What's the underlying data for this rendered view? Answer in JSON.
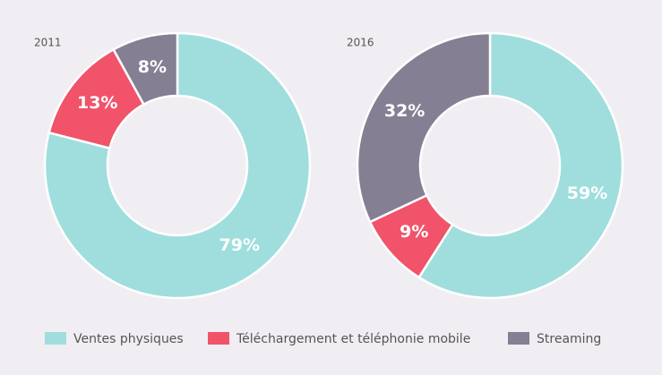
{
  "chart_data": [
    {
      "type": "pie",
      "title": "2011",
      "categories": [
        "Ventes physiques",
        "Téléchargement et téléphonie mobile",
        "Streaming"
      ],
      "values": [
        79,
        13,
        8
      ],
      "value_labels": [
        "79%",
        "13%",
        "8%"
      ],
      "colors": [
        "#9fdedd",
        "#f0536a",
        "#857f93"
      ]
    },
    {
      "type": "pie",
      "title": "2016",
      "categories": [
        "Ventes physiques",
        "Téléchargement et téléphonie mobile",
        "Streaming"
      ],
      "values": [
        59,
        9,
        32
      ],
      "value_labels": [
        "59%",
        "9%",
        "32%"
      ],
      "colors": [
        "#9fdedd",
        "#f0536a",
        "#857f93"
      ]
    }
  ]
}
